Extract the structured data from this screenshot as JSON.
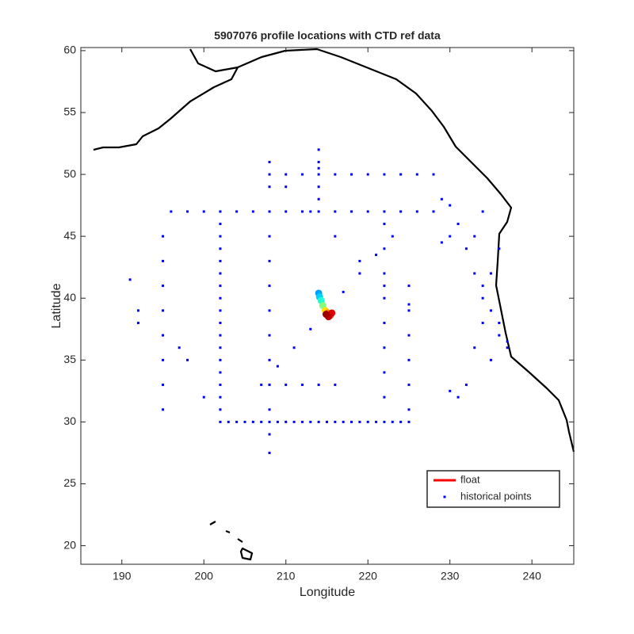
{
  "chart_data": {
    "type": "scatter",
    "title": "5907076 profile locations with CTD ref data",
    "x_label": "Longitude",
    "y_label": "Latitude",
    "xlim": [
      185,
      245.1
    ],
    "ylim": [
      18.5,
      60.25
    ],
    "xticks": [
      190,
      200,
      210,
      220,
      230,
      240
    ],
    "yticks": [
      20,
      25,
      30,
      35,
      40,
      45,
      50,
      55,
      60
    ],
    "legend": "southeast",
    "series": [
      {
        "name": "float",
        "color": "#ff0000",
        "x": [
          214.0,
          214.1,
          214.3,
          214.5,
          214.8,
          215.1,
          215.4,
          215.6,
          215.2,
          214.9
        ],
        "values": [
          40.4,
          40.1,
          39.8,
          39.4,
          39.0,
          38.8,
          38.6,
          38.8,
          38.5,
          38.7
        ],
        "marker_colors": [
          "#00a0ff",
          "#00d0ff",
          "#20ffd0",
          "#80ff80",
          "#ffe000",
          "#ff8000",
          "#ff3000",
          "#e00000",
          "#c00000",
          "#a00000"
        ]
      },
      {
        "name": "historical points",
        "color": "#0000ff",
        "x": [
          202,
          203,
          204,
          205,
          206,
          207,
          208,
          209,
          210,
          211,
          212,
          213,
          214,
          215,
          216,
          217,
          218,
          219,
          220,
          221,
          222,
          223,
          224,
          225,
          202,
          202,
          202,
          202,
          202,
          202,
          202,
          202,
          202,
          202,
          202,
          202,
          202,
          202,
          202,
          202,
          202,
          196,
          198,
          200,
          204,
          206,
          208,
          210,
          212,
          214,
          216,
          218,
          220,
          222,
          224,
          226,
          228,
          208,
          208,
          208,
          208,
          208,
          208,
          208,
          208,
          208,
          208,
          208,
          208,
          222,
          222,
          222,
          222,
          222,
          222,
          222,
          222,
          225,
          225,
          225,
          225,
          225,
          225,
          207,
          209,
          211,
          213,
          217,
          219,
          221,
          223,
          210,
          213,
          216,
          219,
          222,
          225,
          195,
          195,
          195,
          195,
          195,
          195,
          195,
          195,
          191,
          192,
          192,
          197,
          198,
          200,
          208,
          210,
          212,
          214,
          216,
          218,
          220,
          222,
          224,
          226,
          228,
          229,
          230,
          230,
          229,
          231,
          232,
          233,
          234,
          235,
          236,
          236,
          237,
          237,
          235,
          234,
          233,
          232,
          230,
          231,
          234,
          233,
          234,
          236,
          235,
          214,
          214,
          214,
          214,
          214,
          208,
          210,
          212,
          214,
          216
        ],
        "values": [
          30,
          30,
          30,
          30,
          30,
          30,
          30,
          30,
          30,
          30,
          30,
          30,
          30,
          30,
          30,
          30,
          30,
          30,
          30,
          30,
          30,
          30,
          30,
          30,
          31,
          32,
          33,
          34,
          35,
          36,
          37,
          38,
          39,
          40,
          41,
          42,
          43,
          44,
          45,
          46,
          47,
          47,
          47,
          47,
          47,
          47,
          47,
          47,
          47,
          47,
          47,
          47,
          47,
          47,
          47,
          47,
          47,
          27.5,
          29,
          31,
          33,
          35,
          37,
          39,
          41,
          43,
          45,
          49,
          51,
          32,
          34,
          36,
          38,
          40,
          42,
          44,
          46,
          31,
          33,
          35,
          37,
          39,
          41,
          33,
          34.5,
          36,
          37.5,
          40.5,
          42,
          43.5,
          45,
          49,
          47,
          45,
          43,
          41,
          39.5,
          31,
          33,
          35,
          37,
          39,
          41,
          43,
          45,
          41.5,
          39,
          38,
          36,
          35,
          32,
          50,
          50,
          50,
          50,
          50,
          50,
          50,
          50,
          50,
          50,
          50,
          48,
          47.5,
          45,
          44.5,
          46,
          44,
          42,
          40,
          39,
          38,
          37,
          36.5,
          36,
          35,
          41,
          36,
          33,
          32.5,
          32,
          38,
          45,
          47,
          44,
          42,
          52,
          51,
          50.5,
          49,
          48,
          33,
          33,
          33,
          33,
          33
        ]
      }
    ]
  }
}
